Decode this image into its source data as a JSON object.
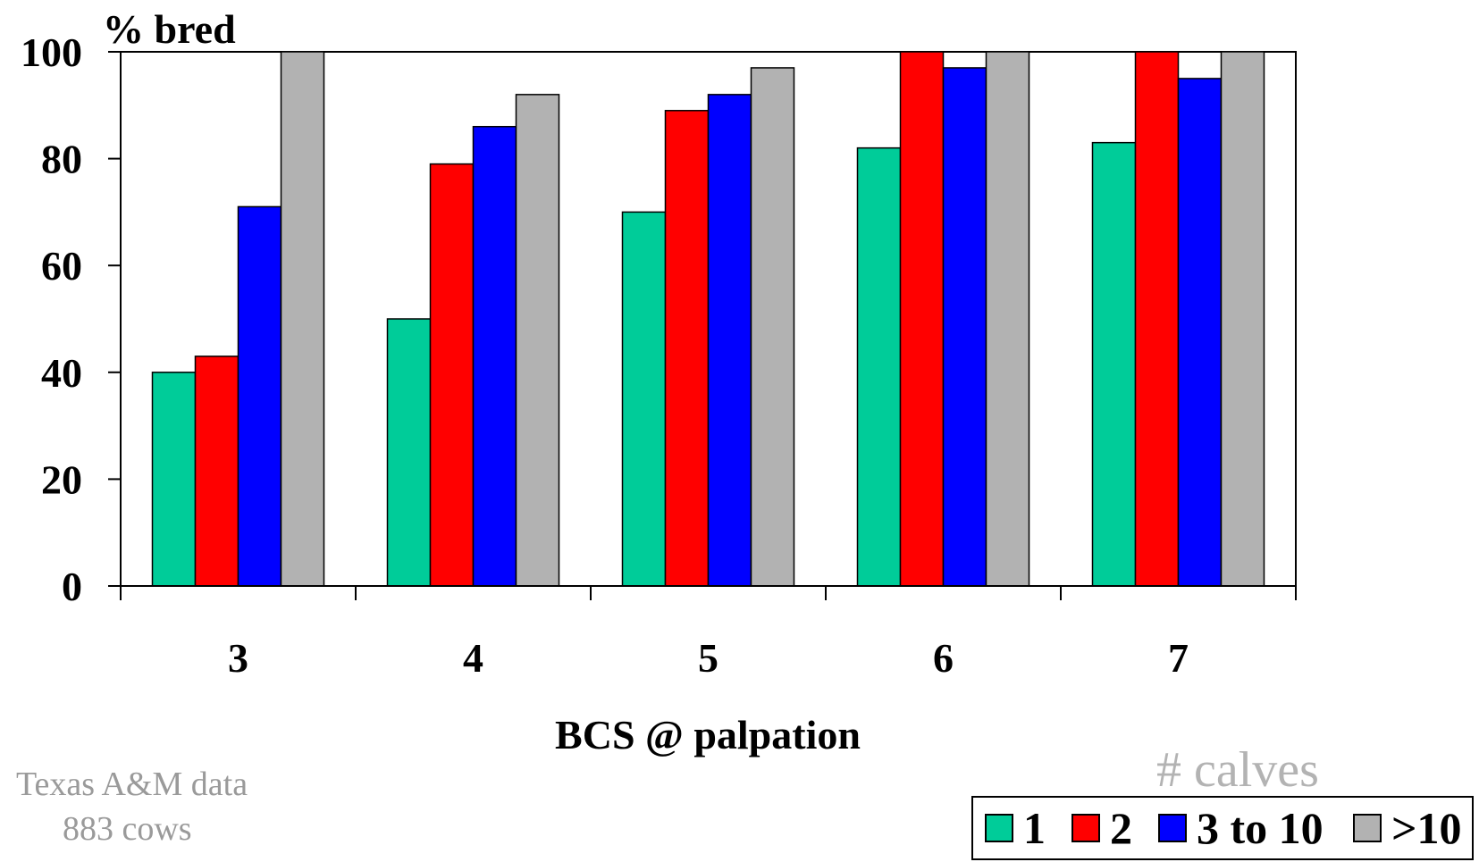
{
  "chart_data": {
    "type": "bar",
    "ylabel": "% bred",
    "xlabel": "BCS @ palpation",
    "categories": [
      "3",
      "4",
      "5",
      "6",
      "7"
    ],
    "ylim": [
      0,
      100
    ],
    "yticks": [
      "0",
      "20",
      "40",
      "60",
      "80",
      "100"
    ],
    "grid": false,
    "legend_title": "# calves",
    "legend_position": "bottom-right",
    "series": [
      {
        "name": "1",
        "color": "#00cc99",
        "values": [
          40,
          50,
          70,
          82,
          83
        ]
      },
      {
        "name": "2",
        "color": "#ff0000",
        "values": [
          43,
          79,
          89,
          100,
          100
        ]
      },
      {
        "name": "3 to 10",
        "color": "#0000ff",
        "values": [
          71,
          86,
          92,
          97,
          95
        ]
      },
      {
        "name": ">10",
        "color": "#b2b2b2",
        "values": [
          100,
          92,
          97,
          100,
          100
        ]
      }
    ]
  },
  "note": {
    "line1": "Texas A&M data",
    "line2": "883 cows"
  }
}
